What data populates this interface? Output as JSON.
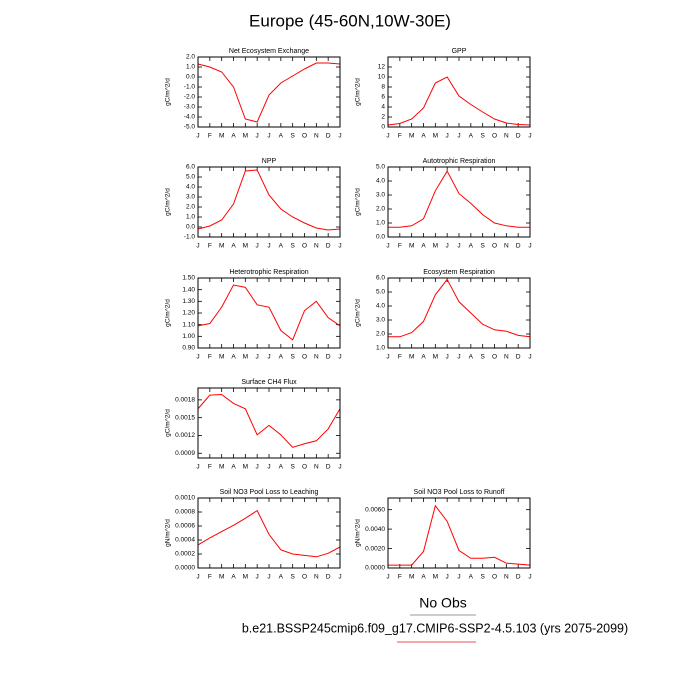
{
  "title": "Europe (45-60N,10W-30E)",
  "chart_data": [
    {
      "type": "line",
      "title": "Net Ecosystem Exchange",
      "ylabel": "gC/m^2/d",
      "color": "#ff0000",
      "categories": [
        "J",
        "F",
        "M",
        "A",
        "M",
        "J",
        "J",
        "A",
        "S",
        "O",
        "N",
        "D",
        "J"
      ],
      "values": [
        1.3,
        1.0,
        0.5,
        -1.0,
        -4.2,
        -4.5,
        -1.8,
        -0.6,
        0.1,
        0.8,
        1.4,
        1.4,
        1.3
      ],
      "ylim": [
        -5,
        2
      ],
      "yticks": [
        {
          "value": -5,
          "label": "-5.0"
        },
        {
          "value": -4,
          "label": "-4.0"
        },
        {
          "value": -3,
          "label": "-3.0"
        },
        {
          "value": -2,
          "label": "-2.0"
        },
        {
          "value": -1,
          "label": "-1.0"
        },
        {
          "value": 0,
          "label": "0.0"
        },
        {
          "value": 1,
          "label": "1.0"
        },
        {
          "value": 2,
          "label": "2.0"
        }
      ]
    },
    {
      "type": "line",
      "title": "GPP",
      "ylabel": "gC/m^2/d",
      "color": "#ff0000",
      "categories": [
        "J",
        "F",
        "M",
        "A",
        "M",
        "J",
        "J",
        "A",
        "S",
        "O",
        "N",
        "D",
        "J"
      ],
      "values": [
        0.4,
        0.7,
        1.6,
        3.8,
        8.8,
        10.0,
        6.2,
        4.5,
        3.0,
        1.6,
        0.8,
        0.5,
        0.4
      ],
      "ylim": [
        0,
        14
      ],
      "yticks": [
        0,
        2,
        4,
        6,
        8,
        10,
        12
      ]
    },
    {
      "type": "line",
      "title": "NPP",
      "ylabel": "gC/m^2/d",
      "color": "#ff0000",
      "categories": [
        "J",
        "F",
        "M",
        "A",
        "M",
        "J",
        "J",
        "A",
        "S",
        "O",
        "N",
        "D",
        "J"
      ],
      "values": [
        -0.2,
        0.1,
        0.7,
        2.3,
        5.6,
        5.7,
        3.2,
        1.8,
        1.0,
        0.4,
        -0.1,
        -0.3,
        -0.2
      ],
      "ylim": [
        -1,
        6
      ],
      "yticks": [
        {
          "value": -1,
          "label": "-1.0"
        },
        {
          "value": 0,
          "label": "0.0"
        },
        {
          "value": 1,
          "label": "1.0"
        },
        {
          "value": 2,
          "label": "2.0"
        },
        {
          "value": 3,
          "label": "3.0"
        },
        {
          "value": 4,
          "label": "4.0"
        },
        {
          "value": 5,
          "label": "5.0"
        },
        {
          "value": 6,
          "label": "6.0"
        }
      ]
    },
    {
      "type": "line",
      "title": "Autotrophic Respiration",
      "ylabel": "gC/m^2/d",
      "color": "#ff0000",
      "categories": [
        "J",
        "F",
        "M",
        "A",
        "M",
        "J",
        "J",
        "A",
        "S",
        "O",
        "N",
        "D",
        "J"
      ],
      "values": [
        0.7,
        0.7,
        0.8,
        1.3,
        3.3,
        4.7,
        3.1,
        2.4,
        1.6,
        1.0,
        0.8,
        0.7,
        0.7
      ],
      "ylim": [
        0,
        5
      ],
      "yticks": [
        {
          "value": 0,
          "label": "0.0"
        },
        {
          "value": 1,
          "label": "1.0"
        },
        {
          "value": 2,
          "label": "2.0"
        },
        {
          "value": 3,
          "label": "3.0"
        },
        {
          "value": 4,
          "label": "4.0"
        },
        {
          "value": 5,
          "label": "5.0"
        }
      ]
    },
    {
      "type": "line",
      "title": "Heterotrophic Respiration",
      "ylabel": "gC/m^2/d",
      "color": "#ff0000",
      "categories": [
        "J",
        "F",
        "M",
        "A",
        "M",
        "J",
        "J",
        "A",
        "S",
        "O",
        "N",
        "D",
        "J"
      ],
      "values": [
        1.09,
        1.11,
        1.25,
        1.44,
        1.42,
        1.27,
        1.25,
        1.05,
        0.97,
        1.22,
        1.3,
        1.16,
        1.09
      ],
      "ylim": [
        0.9,
        1.5
      ],
      "yticks": [
        {
          "value": 0.9,
          "label": "0.90"
        },
        {
          "value": 1.0,
          "label": "1.00"
        },
        {
          "value": 1.1,
          "label": "1.10"
        },
        {
          "value": 1.2,
          "label": "1.20"
        },
        {
          "value": 1.3,
          "label": "1.30"
        },
        {
          "value": 1.4,
          "label": "1.40"
        },
        {
          "value": 1.5,
          "label": "1.50"
        }
      ]
    },
    {
      "type": "line",
      "title": "Ecosystem Respiration",
      "ylabel": "gC/m^2/d",
      "color": "#ff0000",
      "categories": [
        "J",
        "F",
        "M",
        "A",
        "M",
        "J",
        "J",
        "A",
        "S",
        "O",
        "N",
        "D",
        "J"
      ],
      "values": [
        1.8,
        1.8,
        2.1,
        2.9,
        4.8,
        5.9,
        4.3,
        3.5,
        2.7,
        2.3,
        2.2,
        1.9,
        1.8
      ],
      "ylim": [
        1,
        6
      ],
      "yticks": [
        {
          "value": 1,
          "label": "1.0"
        },
        {
          "value": 2,
          "label": "2.0"
        },
        {
          "value": 3,
          "label": "3.0"
        },
        {
          "value": 4,
          "label": "4.0"
        },
        {
          "value": 5,
          "label": "5.0"
        },
        {
          "value": 6,
          "label": "6.0"
        }
      ]
    },
    {
      "type": "line",
      "title": "Surface CH4 Flux",
      "ylabel": "gC/m^2/d",
      "color": "#ff0000",
      "categories": [
        "J",
        "F",
        "M",
        "A",
        "M",
        "J",
        "J",
        "A",
        "S",
        "O",
        "N",
        "D",
        "J"
      ],
      "values": [
        0.00165,
        0.00188,
        0.00189,
        0.00174,
        0.00165,
        0.00121,
        0.00137,
        0.00121,
        0.001,
        0.00106,
        0.00111,
        0.00131,
        0.00165
      ],
      "ylim": [
        0.00082,
        0.002
      ],
      "yticks": [
        0.0009,
        0.0012,
        0.0015,
        0.0018
      ]
    },
    {
      "type": "line",
      "title": "Soil NO3 Pool Loss to Leaching",
      "ylabel": "gN/m^2/d",
      "color": "#ff0000",
      "categories": [
        "J",
        "F",
        "M",
        "A",
        "M",
        "J",
        "J",
        "A",
        "S",
        "O",
        "N",
        "D",
        "J"
      ],
      "values": [
        0.00033,
        0.00043,
        0.00052,
        0.00061,
        0.00071,
        0.00082,
        0.00048,
        0.00026,
        0.0002,
        0.00018,
        0.00016,
        0.00021,
        0.0003
      ],
      "ylim": [
        0,
        0.001
      ],
      "yticks": [
        {
          "value": 0,
          "label": "0.0000"
        },
        {
          "value": 0.0002,
          "label": "0.0002"
        },
        {
          "value": 0.0004,
          "label": "0.0004"
        },
        {
          "value": 0.0006,
          "label": "0.0006"
        },
        {
          "value": 0.0008,
          "label": "0.0008"
        },
        {
          "value": 0.001,
          "label": "0.0010"
        }
      ]
    },
    {
      "type": "line",
      "title": "Soil NO3 Pool Loss to Runoff",
      "ylabel": "gN/m^2/d",
      "color": "#ff0000",
      "categories": [
        "J",
        "F",
        "M",
        "A",
        "M",
        "J",
        "J",
        "A",
        "S",
        "O",
        "N",
        "D",
        "J"
      ],
      "values": [
        0.0003,
        0.0003,
        0.0003,
        0.0017,
        0.0064,
        0.0048,
        0.0018,
        0.001,
        0.001,
        0.0011,
        0.0005,
        0.0004,
        0.0003
      ],
      "ylim": [
        0,
        0.0072
      ],
      "yticks": [
        {
          "value": 0,
          "label": "0.0000"
        },
        {
          "value": 0.002,
          "label": "0.0020"
        },
        {
          "value": 0.004,
          "label": "0.0040"
        },
        {
          "value": 0.006,
          "label": "0.0060"
        }
      ]
    }
  ],
  "no_obs": "No Obs",
  "case": "b.e21.BSSP245cmip6.f09_g17.CMIP6-SSP2-4.5.103 (yrs 2075-2099)"
}
